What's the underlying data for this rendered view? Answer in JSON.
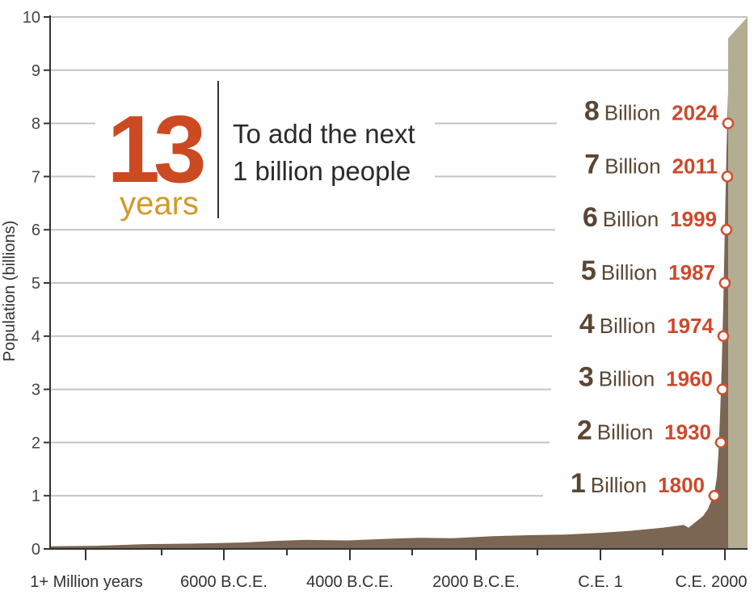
{
  "chart_data": {
    "type": "area",
    "title": "",
    "xlabel": "",
    "ylabel": "Population (billions)",
    "ylim": [
      0,
      10
    ],
    "yticks": [
      "0",
      "1",
      "2",
      "3",
      "4",
      "5",
      "6",
      "7",
      "8",
      "9",
      "10"
    ],
    "xticks": [
      "1+ Million years",
      "6000 B.C.E.",
      "4000 B.C.E.",
      "2000 B.C.E.",
      "C.E. 1",
      "C.E. 2000"
    ],
    "grid": true,
    "colors": {
      "area": "#7b6553",
      "area_projection": "#b3ad92",
      "marker": "#d0502f",
      "gridline": "#c4c4c4"
    },
    "milestones": [
      {
        "billions": 1,
        "label": "1",
        "unit": "Billion",
        "year": "1800"
      },
      {
        "billions": 2,
        "label": "2",
        "unit": "Billion",
        "year": "1930"
      },
      {
        "billions": 3,
        "label": "3",
        "unit": "Billion",
        "year": "1960"
      },
      {
        "billions": 4,
        "label": "4",
        "unit": "Billion",
        "year": "1974"
      },
      {
        "billions": 5,
        "label": "5",
        "unit": "Billion",
        "year": "1987"
      },
      {
        "billions": 6,
        "label": "6",
        "unit": "Billion",
        "year": "1999"
      },
      {
        "billions": 7,
        "label": "7",
        "unit": "Billion",
        "year": "2011"
      },
      {
        "billions": 8,
        "label": "8",
        "unit": "Billion",
        "year": "2024"
      }
    ],
    "callout": {
      "number": "13",
      "unit": "years",
      "line1": "To add the next",
      "line2": "1 billion people"
    }
  }
}
